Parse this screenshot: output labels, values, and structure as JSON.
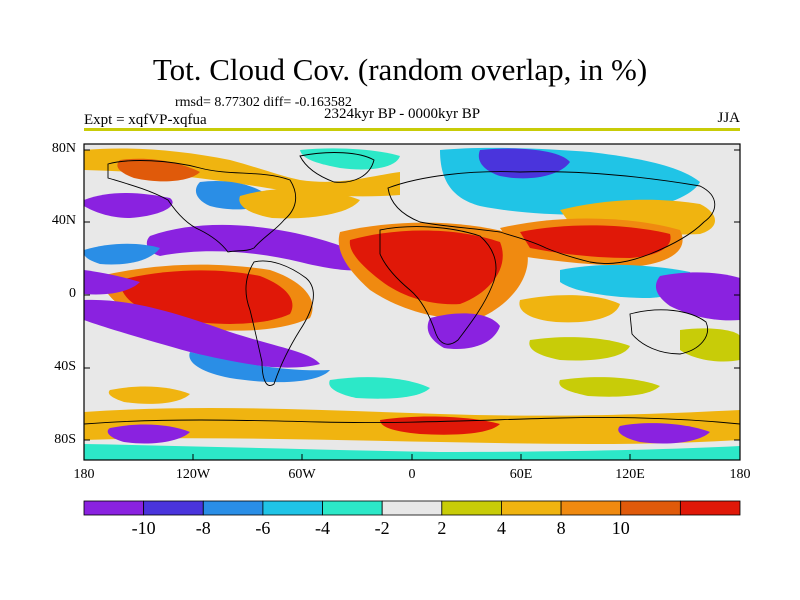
{
  "title": "Tot. Cloud Cov. (random overlap, in %)",
  "stats": "rmsd= 8.77302 diff= -0.163582",
  "experiment": "Expt = xqfVP-xqfua",
  "period": "2324kyr BP - 0000kyr BP",
  "season": "JJA",
  "lat_labels": [
    "80N",
    "40N",
    "0",
    "40S",
    "80S"
  ],
  "lon_labels": [
    "180",
    "120W",
    "60W",
    "0",
    "60E",
    "120E",
    "180"
  ],
  "colorbar": {
    "labels": [
      "-10",
      "-8",
      "-6",
      "-4",
      "-2",
      "2",
      "4",
      "8",
      "10"
    ],
    "colors": [
      "#8a22e0",
      "#4a34dc",
      "#2a8ee6",
      "#20c4e6",
      "#2ce8c8",
      "#e8e8e8",
      "#c8cc08",
      "#f0b410",
      "#f08a10",
      "#e05a0a",
      "#e01808"
    ]
  }
}
